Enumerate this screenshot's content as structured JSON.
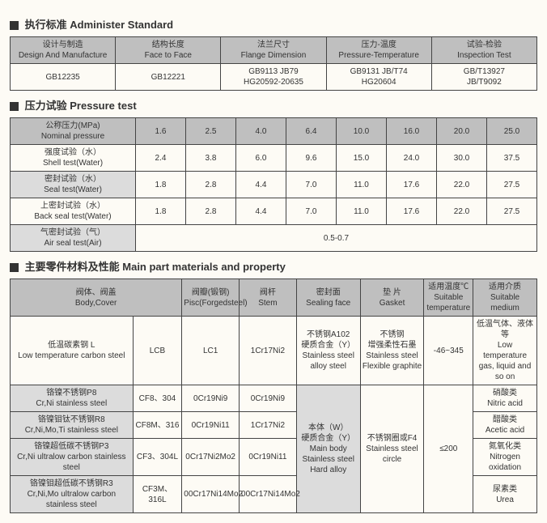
{
  "section1": {
    "title_cn": "执行标准",
    "title_en": "Administer Standard",
    "headers": [
      {
        "cn": "设计与制造",
        "en": "Design And Manufacture"
      },
      {
        "cn": "结构长度",
        "en": "Face to Face"
      },
      {
        "cn": "法兰尺寸",
        "en": "Flange Dimension"
      },
      {
        "cn": "压力-温度",
        "en": "Pressure-Temperature"
      },
      {
        "cn": "试验-检验",
        "en": "Inspection Test"
      }
    ],
    "row": [
      "GB12235",
      "GB12221",
      "GB9113 JB79\nHG20592-20635",
      "GB9131 JB/T74\nHG20604",
      "GB/T13927\nJB/T9092"
    ]
  },
  "section2": {
    "title_cn": "压力试验",
    "title_en": "Pressure test",
    "nominal": {
      "cn": "公称压力(MPa)",
      "en": "Nominal pressure"
    },
    "pressures": [
      "1.6",
      "2.5",
      "4.0",
      "6.4",
      "10.0",
      "16.0",
      "20.0",
      "25.0"
    ],
    "rows": [
      {
        "label_cn": "强度试验（水）",
        "label_en": "Shell test(Water)",
        "vals": [
          "2.4",
          "3.8",
          "6.0",
          "9.6",
          "15.0",
          "24.0",
          "30.0",
          "37.5"
        ],
        "alt": false
      },
      {
        "label_cn": "密封试验（水）",
        "label_en": "Seal test(Water)",
        "vals": [
          "1.8",
          "2.8",
          "4.4",
          "7.0",
          "11.0",
          "17.6",
          "22.0",
          "27.5"
        ],
        "alt": true
      },
      {
        "label_cn": "上密封试验（水）",
        "label_en": "Back seal test(Water)",
        "vals": [
          "1.8",
          "2.8",
          "4.4",
          "7.0",
          "11.0",
          "17.6",
          "22.0",
          "27.5"
        ],
        "alt": false
      },
      {
        "label_cn": "气密封试验（气）",
        "label_en": "Air seal test(Air)",
        "merged": "0.5-0.7",
        "alt": true
      }
    ]
  },
  "section3": {
    "title_cn": "主要零件材料及性能",
    "title_en": "Main part materials and property",
    "headers": [
      {
        "cn": "阀体、阀盖",
        "en": "Body,Cover"
      },
      {
        "cn": "阀瓣(锻钢)",
        "en": "Pisc(Forgedsteel)"
      },
      {
        "cn": "阀杆",
        "en": "Stem"
      },
      {
        "cn": "密封面",
        "en": "Sealing face"
      },
      {
        "cn": "垫  片",
        "en": "Gasket"
      },
      {
        "cn": "适用温度℃",
        "en": "Suitable temperature"
      },
      {
        "cn": "适用介质",
        "en": "Suitable medium"
      }
    ],
    "row1": {
      "mat_cn": "低温碳素钢 L",
      "mat_en": "Low temperature carbon steel",
      "body": "LCB",
      "pisc": "LC1",
      "stem": "1Cr17Ni2",
      "seal_cn": "不锈钢A102\n硬质合金（Y）",
      "seal_en": "Stainless steel alloy steel",
      "gasket_cn": "不锈钢\n增强柔性石墨",
      "gasket_en": "Stainless steel Flexible graphite",
      "temp": "-46~345",
      "medium_cn": "低温气体、液体等",
      "medium_en": "Low temperature gas, liquid and so on"
    },
    "seal_merged_cn": "本体（W）\n硬质合金（Y）",
    "seal_merged_en": "Main body Stainless steel Hard alloy",
    "gasket_merged_cn": "不锈钢圈或F4",
    "gasket_merged_en": "Stainless steel circle",
    "temp_merged": "≤200",
    "rows": [
      {
        "mat_cn": "铬镍不锈钢P8",
        "mat_en": "Cr,Ni stainless steel",
        "body": "CF8、304",
        "pisc": "0Cr19Ni9",
        "stem": "0Cr19Ni9",
        "medium_cn": "硝酸类",
        "medium_en": "Nitric acid"
      },
      {
        "mat_cn": "铬镍钼钛不锈钢R8",
        "mat_en": "Cr,Ni,Mo,Ti stainless steel",
        "body": "CF8M、316",
        "pisc": "0Cr19Ni11",
        "stem": "1Cr17Ni2",
        "medium_cn": "醋酸类",
        "medium_en": "Acetic acid"
      },
      {
        "mat_cn": "铬镍超低碳不锈钢P3",
        "mat_en": "Cr,Ni ultralow carbon stainless steel",
        "body": "CF3、304L",
        "pisc": "0Cr17Ni2Mo2",
        "stem": "0Cr19Ni11",
        "medium_cn": "氮氧化类",
        "medium_en": "Nitrogen oxidation"
      },
      {
        "mat_cn": "铬镍钼超低碳不锈钢R3",
        "mat_en": "Cr,Ni,Mo ultralow carbon stainless steel",
        "body": "CF3M、316L",
        "pisc": "00Cr17Ni14Mo2",
        "stem": "00Cr17Ni14Mo2",
        "medium_cn": "尿素类",
        "medium_en": "Urea"
      }
    ]
  }
}
